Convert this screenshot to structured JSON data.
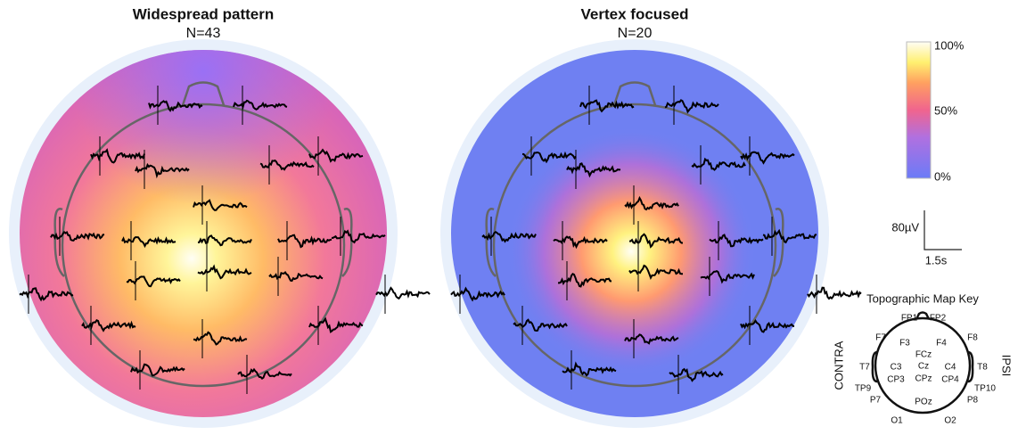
{
  "panels": [
    {
      "title": "Widespread pattern",
      "n_label": "N=43"
    },
    {
      "title": "Vertex focused",
      "n_label": "N=20"
    }
  ],
  "colorbar": {
    "labels": [
      "100%",
      "50%",
      "0%"
    ]
  },
  "scale_bar": {
    "amplitude": "80µV",
    "time": "1.5s"
  },
  "key": {
    "title": "Topographic Map Key",
    "left_side": "CONTRA",
    "right_side": "IPSI",
    "electrodes": [
      "FP1",
      "FP2",
      "F7",
      "F3",
      "F4",
      "F8",
      "FCz",
      "T7",
      "C3",
      "Cz",
      "C4",
      "T8",
      "CP3",
      "CPz",
      "CP4",
      "TP9",
      "TP10",
      "P7",
      "P8",
      "POz",
      "O1",
      "O2"
    ]
  }
}
